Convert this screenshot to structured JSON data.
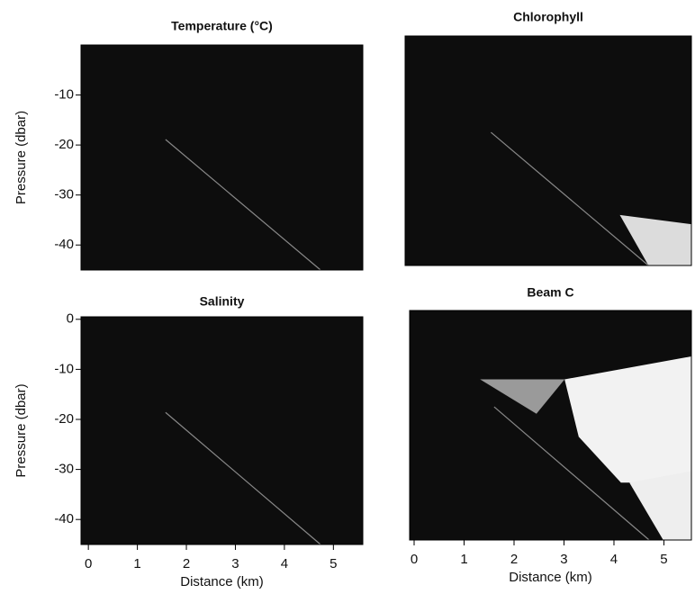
{
  "chart_data": [
    {
      "type": "contour",
      "title": "Temperature (°C)",
      "ylabel": "Pressure (dbar)",
      "ylim": [
        -45,
        0
      ],
      "yticks": [
        -10,
        -20,
        -30,
        -40
      ]
    },
    {
      "type": "contour",
      "title": "Chlorophyll"
    },
    {
      "type": "contour",
      "title": "Salinity",
      "ylabel": "Pressure (dbar)",
      "xlabel": "Distance (km)",
      "ylim": [
        -45,
        0.5
      ],
      "yticks": [
        0,
        -10,
        -20,
        -30,
        -40
      ],
      "xlim": [
        -0.15,
        5.6
      ],
      "xticks": [
        0,
        1,
        2,
        3,
        4,
        5
      ]
    },
    {
      "type": "contour",
      "title": "Beam C",
      "xlabel": "Distance (km)",
      "xlim": [
        -0.09,
        5.55
      ],
      "xticks": [
        0,
        1,
        2,
        3,
        4,
        5
      ]
    }
  ]
}
